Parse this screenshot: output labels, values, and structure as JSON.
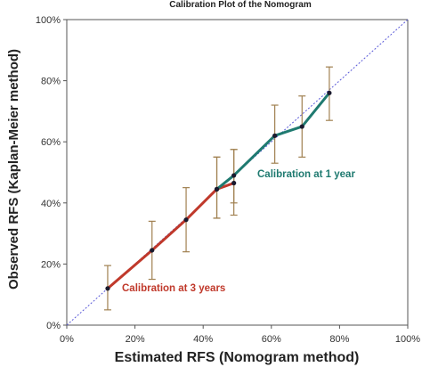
{
  "chart_data": {
    "type": "line",
    "title": "Calibration Plot of the Nomogram",
    "xlabel": "Estimated RFS (Nomogram method)",
    "ylabel": "Observed RFS (Kaplan-Meier method)",
    "xlim": [
      0,
      100
    ],
    "ylim": [
      0,
      100
    ],
    "x_ticks": [
      "0%",
      "20%",
      "40%",
      "60%",
      "80%",
      "100%"
    ],
    "y_ticks": [
      "0%",
      "20%",
      "40%",
      "60%",
      "80%",
      "100%"
    ],
    "x_tick_values": [
      0,
      20,
      40,
      60,
      80,
      100
    ],
    "y_tick_values": [
      0,
      20,
      40,
      60,
      80,
      100
    ],
    "grid": false,
    "reference_line": {
      "style": "dotted",
      "color": "#5a5ad8",
      "from": [
        0,
        0
      ],
      "to": [
        100,
        100
      ]
    },
    "series": [
      {
        "name": "Calibration at 3 years",
        "color": "#c0392b",
        "x": [
          12,
          25,
          35,
          44,
          49
        ],
        "y": [
          12,
          24.5,
          34.5,
          44.5,
          46.5
        ],
        "y_lower": [
          5,
          15,
          24,
          35,
          36
        ],
        "y_upper": [
          19.5,
          34,
          45,
          55,
          57.5
        ]
      },
      {
        "name": "Calibration at 1 year",
        "color": "#1f7a70",
        "x": [
          44,
          49,
          61,
          69,
          77
        ],
        "y": [
          44.5,
          49,
          62,
          65,
          76
        ],
        "y_lower": [
          35,
          40,
          53,
          55,
          67
        ],
        "y_upper": [
          55,
          57.5,
          72,
          75,
          84.5
        ]
      }
    ],
    "error_bar_color": "#a08050",
    "annotations": [
      {
        "text": "Calibration at 1 year",
        "color": "#1f7a70"
      },
      {
        "text": "Calibration at 3 years",
        "color": "#c0392b"
      }
    ]
  }
}
